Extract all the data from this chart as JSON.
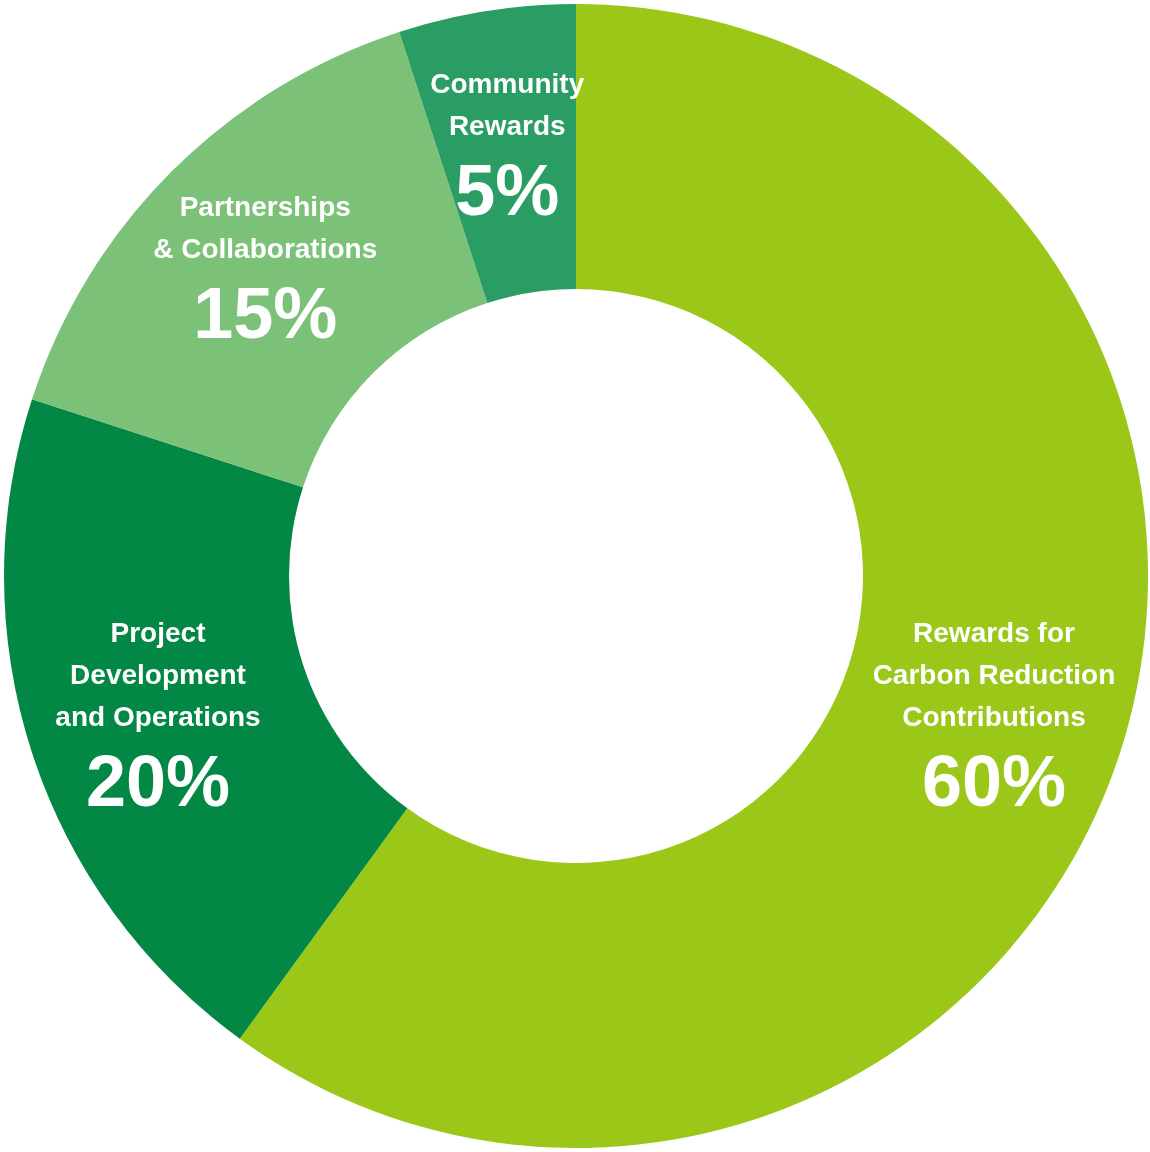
{
  "chart_data": {
    "type": "donut",
    "categories": [
      "Rewards for\nCarbon Reduction\nContributions",
      "Project\nDevelopment\nand Operations",
      "Partnerships\n& Collaborations",
      "Community\nRewards"
    ],
    "values": [
      60,
      20,
      15,
      5
    ],
    "value_labels": [
      "60%",
      "20%",
      "15%",
      "5%"
    ],
    "colors": [
      "#9bc719",
      "#038745",
      "#7bc178",
      "#2a9d64"
    ]
  }
}
